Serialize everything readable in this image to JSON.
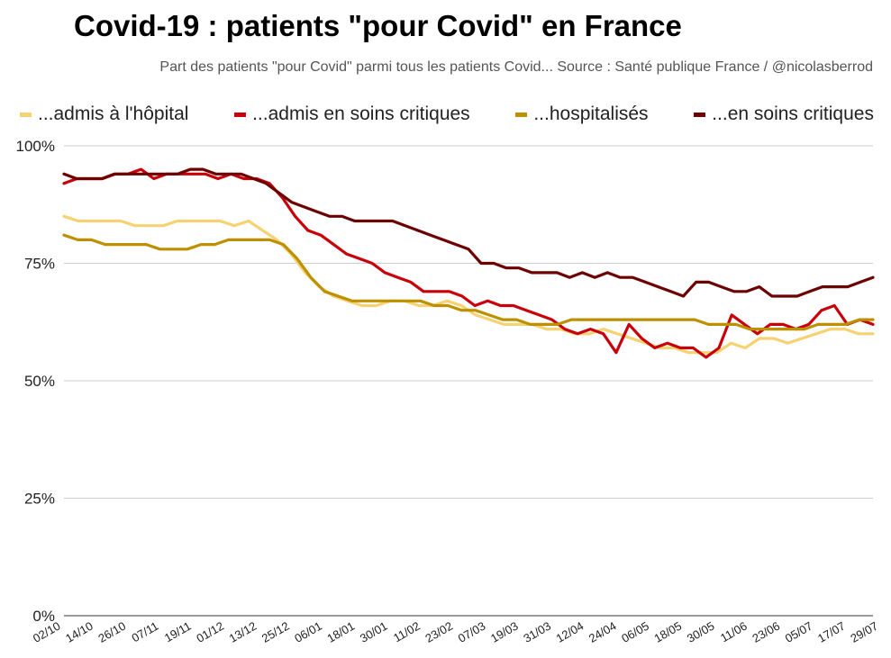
{
  "chart_data": {
    "type": "line",
    "title": "Covid-19 : patients \"pour Covid\" en France",
    "subtitle": "Part des patients \"pour Covid\" parmi tous les patients Covid... Source : Santé publique France / @nicolasberrod",
    "xlabel": "",
    "ylabel": "",
    "x_tick_labels": [
      "02/10",
      "14/10",
      "26/10",
      "07/11",
      "19/11",
      "01/12",
      "13/12",
      "25/12",
      "06/01",
      "18/01",
      "30/01",
      "11/02",
      "23/02",
      "07/03",
      "19/03",
      "31/03",
      "12/04",
      "24/04",
      "06/05",
      "18/05",
      "30/05",
      "11/06",
      "23/06",
      "05/07",
      "17/07",
      "29/07"
    ],
    "y_tick_labels": [
      "0%",
      "25%",
      "50%",
      "75%",
      "100%"
    ],
    "ylim": [
      0,
      100
    ],
    "grid": true,
    "legend_position": "top",
    "series": [
      {
        "name": "...admis à l'hôpital",
        "color": "#f6d272",
        "values": [
          85,
          84,
          84,
          84,
          84,
          83,
          83,
          83,
          84,
          84,
          84,
          84,
          83,
          84,
          82,
          80,
          77,
          73,
          70,
          68,
          67,
          66,
          66,
          67,
          67,
          66,
          66,
          67,
          66,
          64,
          63,
          62,
          62,
          62,
          61,
          61,
          60,
          60,
          61,
          60,
          59,
          58,
          57,
          57,
          56,
          56,
          56,
          58,
          57,
          59,
          59,
          58,
          59,
          60,
          61,
          61,
          60,
          60
        ]
      },
      {
        "name": "...admis en soins critiques",
        "color": "#c8000a",
        "values": [
          92,
          93,
          93,
          93,
          94,
          94,
          95,
          93,
          94,
          94,
          94,
          94,
          93,
          94,
          93,
          93,
          92,
          89,
          85,
          82,
          81,
          79,
          77,
          76,
          75,
          73,
          72,
          71,
          69,
          69,
          69,
          68,
          66,
          67,
          66,
          66,
          65,
          64,
          63,
          61,
          60,
          61,
          60,
          56,
          62,
          59,
          57,
          58,
          57,
          57,
          55,
          57,
          64,
          62,
          60,
          62,
          62,
          61,
          62,
          65,
          66,
          62,
          63,
          62
        ]
      },
      {
        "name": "...hospitalisés",
        "color": "#bd9000",
        "values": [
          81,
          80,
          80,
          79,
          79,
          79,
          79,
          78,
          78,
          78,
          79,
          79,
          80,
          80,
          80,
          80,
          79,
          76,
          72,
          69,
          68,
          67,
          67,
          67,
          67,
          67,
          67,
          66,
          66,
          65,
          65,
          64,
          63,
          63,
          62,
          62,
          62,
          63,
          63,
          63,
          63,
          63,
          63,
          63,
          63,
          63,
          63,
          62,
          62,
          62,
          61,
          61,
          61,
          61,
          61,
          62,
          62,
          62,
          63,
          63
        ]
      },
      {
        "name": "...en soins critiques",
        "color": "#6d0000",
        "values": [
          94,
          93,
          93,
          93,
          94,
          94,
          94,
          94,
          94,
          94,
          95,
          95,
          94,
          94,
          94,
          93,
          92,
          90,
          88,
          87,
          86,
          85,
          85,
          84,
          84,
          84,
          84,
          83,
          82,
          81,
          80,
          79,
          78,
          75,
          75,
          74,
          74,
          73,
          73,
          73,
          72,
          73,
          72,
          73,
          72,
          72,
          71,
          70,
          69,
          68,
          71,
          71,
          70,
          69,
          69,
          70,
          68,
          68,
          68,
          69,
          70,
          70,
          70,
          71,
          72
        ]
      }
    ]
  }
}
